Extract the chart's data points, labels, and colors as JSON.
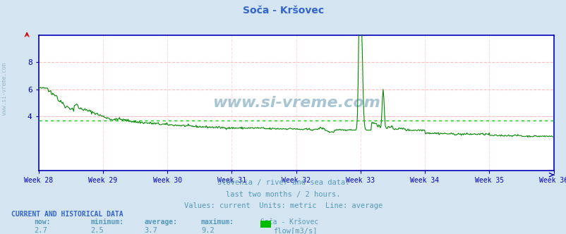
{
  "title": "Soča - Kršovec",
  "bg_color": "#d4e4f0",
  "plot_bg_color": "#ffffff",
  "line_color": "#008800",
  "avg_line_color": "#00cc00",
  "grid_color_h": "#ffbbbb",
  "grid_color_v": "#ffdddd",
  "axis_color": "#0000bb",
  "text_color": "#5599bb",
  "title_color": "#3366cc",
  "watermark_color": "#99bbcc",
  "watermark_large": "www.si-vreme.com",
  "watermark_side": "www.si-vreme.com",
  "subtitle1": "Slovenia / river and sea data.",
  "subtitle2": "last two months / 2 hours.",
  "subtitle3": "Values: current  Units: metric  Line: average",
  "footer_header": "CURRENT AND HISTORICAL DATA",
  "footer_col_labels": [
    "now:",
    "minimum:",
    "average:",
    "maximum:",
    "Soča - Kršovec"
  ],
  "footer_col_values": [
    "2.7",
    "2.5",
    "3.7",
    "9.2"
  ],
  "legend_label": "flow[m3/s]",
  "legend_color": "#00bb00",
  "x_tick_labels": [
    "Week 28",
    "Week 29",
    "Week 30",
    "Week 31",
    "Week 32",
    "Week 33",
    "Week 34",
    "Week 35",
    "Week 36"
  ],
  "y_ticks": [
    4,
    6,
    8
  ],
  "ylim": [
    0,
    10
  ],
  "average_value": 3.7,
  "n_points": 720,
  "weeks": 8
}
